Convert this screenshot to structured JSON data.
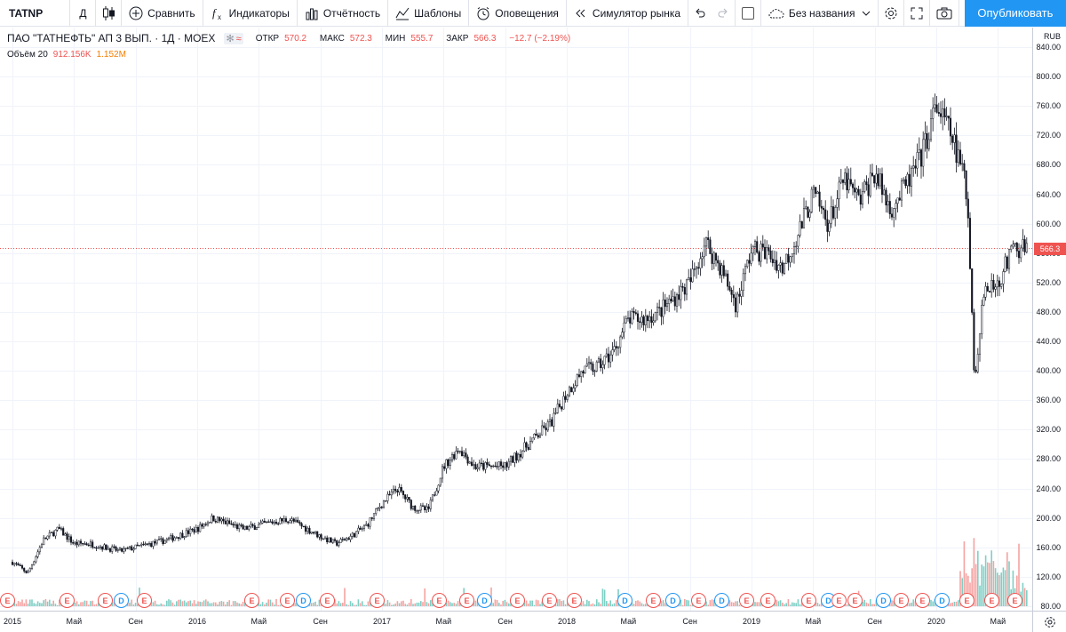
{
  "toolbar": {
    "symbol": "TATNP",
    "interval": "Д",
    "compare": "Сравнить",
    "indicators": "Индикаторы",
    "financials": "Отчётность",
    "templates": "Шаблоны",
    "alerts": "Оповещения",
    "replay": "Симулятор рынка",
    "layout_name": "Без названия",
    "publish": "Опубликовать"
  },
  "legend": {
    "title": "ПАО \"ТАТНЕФТЬ\" АП 3 ВЫП. · 1Д · MOEX",
    "open_label": "ОТКР",
    "open": "570.2",
    "high_label": "МАКС",
    "high": "572.3",
    "low_label": "МИН",
    "low": "555.7",
    "close_label": "ЗАКР",
    "close": "566.3",
    "change": "−12.7 (−2.19%)",
    "volume_label": "Объём 20",
    "volume_value": "912.156K",
    "volume_ma": "1.152M"
  },
  "price_scale": {
    "currency": "RUB",
    "ticks": [
      "840.00",
      "800.00",
      "760.00",
      "720.00",
      "680.00",
      "640.00",
      "600.00",
      "560.00",
      "520.00",
      "480.00",
      "440.00",
      "400.00",
      "360.00",
      "320.00",
      "280.00",
      "240.00",
      "200.00",
      "160.00",
      "120.00",
      "80.00"
    ],
    "last_price": "566.3"
  },
  "time_scale": {
    "ticks": [
      "2015",
      "Май",
      "Сен",
      "2016",
      "Май",
      "Сен",
      "2017",
      "Май",
      "Сен",
      "2018",
      "Май",
      "Сен",
      "2019",
      "Май",
      "Сен",
      "2020",
      "Май"
    ]
  },
  "events": [
    "E",
    "E",
    "E",
    "D",
    "E",
    "E",
    "E",
    "D",
    "E",
    "E",
    "E",
    "E",
    "D",
    "E",
    "E",
    "E",
    "D",
    "E",
    "D",
    "E",
    "D",
    "E",
    "E",
    "E",
    "D",
    "E",
    "E",
    "D",
    "E",
    "E",
    "D",
    "E",
    "E",
    "E",
    "E",
    "D",
    "E",
    "E",
    "D",
    "E",
    "E",
    "E",
    "E",
    "E"
  ],
  "chart_data": {
    "type": "candlestick",
    "symbol": "TATNP",
    "currency": "RUB",
    "x_range": [
      "2015-01",
      "2020-06"
    ],
    "ylim": [
      80,
      840
    ],
    "close_path": [
      [
        "2015-01",
        140
      ],
      [
        "2015-02",
        125
      ],
      [
        "2015-03",
        170
      ],
      [
        "2015-04",
        185
      ],
      [
        "2015-05",
        165
      ],
      [
        "2015-06",
        165
      ],
      [
        "2015-08",
        155
      ],
      [
        "2015-10",
        165
      ],
      [
        "2015-11",
        170
      ],
      [
        "2016-01",
        185
      ],
      [
        "2016-02",
        200
      ],
      [
        "2016-04",
        185
      ],
      [
        "2016-06",
        195
      ],
      [
        "2016-07",
        198
      ],
      [
        "2016-09",
        175
      ],
      [
        "2016-10",
        165
      ],
      [
        "2016-11",
        175
      ],
      [
        "2016-12",
        190
      ],
      [
        "2017-01",
        220
      ],
      [
        "2017-02",
        240
      ],
      [
        "2017-03",
        215
      ],
      [
        "2017-04",
        210
      ],
      [
        "2017-05",
        270
      ],
      [
        "2017-06",
        295
      ],
      [
        "2017-07",
        270
      ],
      [
        "2017-09",
        270
      ],
      [
        "2017-10",
        290
      ],
      [
        "2017-11",
        310
      ],
      [
        "2017-12",
        330
      ],
      [
        "2018-01",
        370
      ],
      [
        "2018-02",
        400
      ],
      [
        "2018-03",
        405
      ],
      [
        "2018-04",
        425
      ],
      [
        "2018-05",
        470
      ],
      [
        "2018-06",
        470
      ],
      [
        "2018-07",
        480
      ],
      [
        "2018-09",
        520
      ],
      [
        "2018-10",
        575
      ],
      [
        "2018-11",
        540
      ],
      [
        "2018-12",
        490
      ],
      [
        "2019-01",
        565
      ],
      [
        "2019-02",
        560
      ],
      [
        "2019-03",
        540
      ],
      [
        "2019-04",
        585
      ],
      [
        "2019-05",
        640
      ],
      [
        "2019-06",
        600
      ],
      [
        "2019-07",
        660
      ],
      [
        "2019-08",
        630
      ],
      [
        "2019-09",
        670
      ],
      [
        "2019-10",
        620
      ],
      [
        "2019-11",
        650
      ],
      [
        "2019-12",
        690
      ],
      [
        "2020-01",
        760
      ],
      [
        "2020-02",
        720
      ],
      [
        "2020-03",
        645
      ],
      [
        "2020-03",
        380
      ],
      [
        "2020-04",
        500
      ],
      [
        "2020-05",
        520
      ],
      [
        "2020-06",
        566.3
      ]
    ],
    "volume_max_million": 240,
    "last": {
      "open": 570.2,
      "high": 572.3,
      "low": 555.7,
      "close": 566.3,
      "change": -12.7,
      "change_pct": -2.19
    },
    "indicators": [
      {
        "name": "Объём",
        "length": 20,
        "value": "912.156K",
        "ma": "1.152M"
      }
    ]
  },
  "colors": {
    "up": "#26a69a",
    "down": "#ef5350",
    "candle": "#131722",
    "accent": "#2196f3",
    "volume_ma": "#f57c00"
  }
}
